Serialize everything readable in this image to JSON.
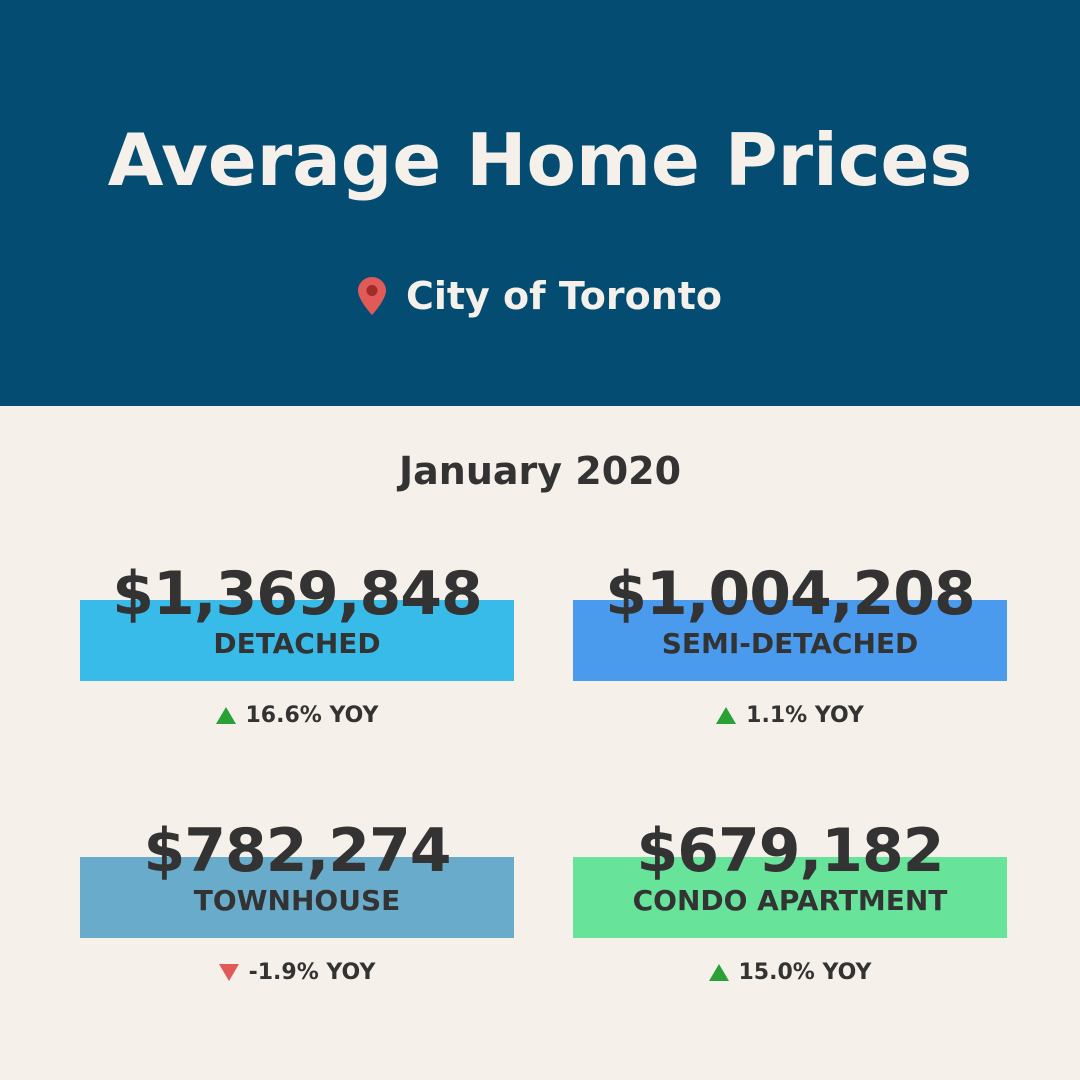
{
  "header": {
    "title": "Average Home Prices",
    "location": "City of Toronto",
    "location_icon": "map-pin-icon",
    "background_color": "#044c71",
    "pin_color": "#e05a57"
  },
  "period": "January 2020",
  "cards": [
    {
      "price": "$1,369,848",
      "label": "DETACHED",
      "change": "16.6% YOY",
      "direction": "up",
      "color": "#38bbe8"
    },
    {
      "price": "$1,004,208",
      "label": "SEMI-DETACHED",
      "change": "1.1% YOY",
      "direction": "up",
      "color": "#4a9bee"
    },
    {
      "price": "$782,274",
      "label": "TOWNHOUSE",
      "change": "-1.9% YOY",
      "direction": "down",
      "color": "#69abca"
    },
    {
      "price": "$679,182",
      "label": "CONDO APARTMENT",
      "change": "15.0% YOY",
      "direction": "up",
      "color": "#68e39a"
    }
  ],
  "colors": {
    "up": "#2aa137",
    "down": "#e05a57",
    "background": "#f5f0ea",
    "text": "#333333"
  }
}
